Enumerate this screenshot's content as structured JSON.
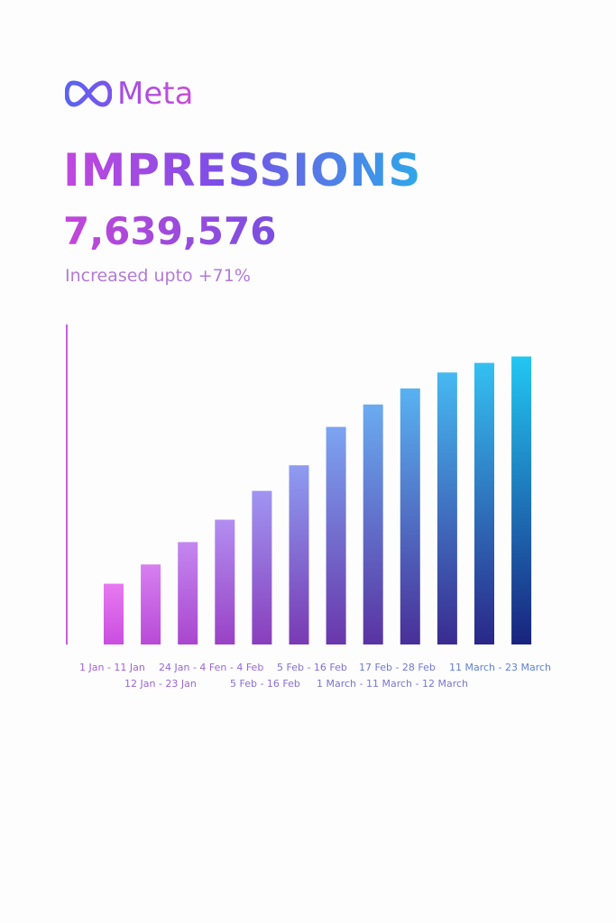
{
  "brand": {
    "name": "Meta",
    "icon": "meta-infinity-logo",
    "color": "#6b5cf0"
  },
  "header": {
    "title": "IMPRESSIONS",
    "total": "7,639,576",
    "subtitle": "Increased upto +71%"
  },
  "chart_data": {
    "type": "bar",
    "title": "",
    "xlabel": "",
    "ylabel": "",
    "grid": false,
    "legend": "none",
    "ylim": [
      0,
      100
    ],
    "values": [
      19,
      25,
      32,
      39,
      48,
      56,
      68,
      75,
      80,
      85,
      88,
      90
    ],
    "tick_labels_row1": [
      "1 Jan - 11 Jan",
      "24 Jan - 4 Fen - 4 Feb",
      "5 Feb - 16 Feb",
      "17 Feb - 28 Feb",
      "11 March - 23 March"
    ],
    "tick_labels_row2": [
      "12 Jan - 23 Jan",
      "5 Feb - 16 Feb",
      "1 March - 11 March - 12 March"
    ],
    "colors": {
      "bar_start_top": "#e879f0",
      "bar_end_top": "#22c7f2",
      "bar_start_bottom": "#c94ee0",
      "bar_end_bottom": "#1a237e",
      "axis_start": "#c45ee0",
      "axis_end": "#4a7fd8"
    }
  }
}
